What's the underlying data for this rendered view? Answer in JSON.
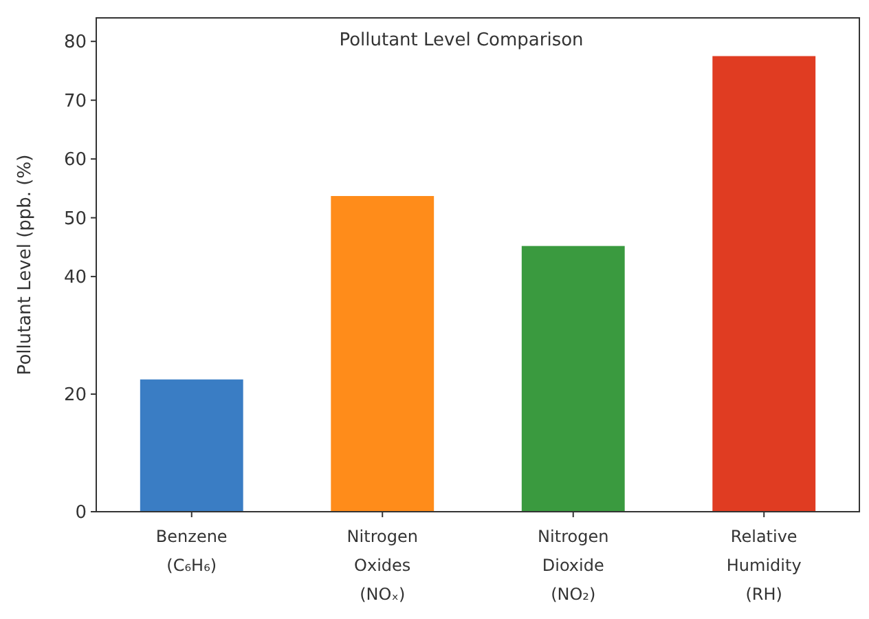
{
  "chart_data": {
    "type": "bar",
    "title": "Pollutant Level Comparison",
    "ylabel": "Pollutant Level (ppb. (%)",
    "categories": [
      "Benzene (C₆H₆)",
      "Nitrogen Oxides (NOₓ)",
      "Nitrogen Dioxide (NO₂)",
      "Relative Humidity (RH)"
    ],
    "values": [
      22.5,
      53.7,
      45.2,
      77.5
    ],
    "colors": [
      "#3a7dc4",
      "#ff8c1a",
      "#3a9a3f",
      "#e03c22"
    ],
    "ylim": [
      0,
      84
    ],
    "yticks": [
      0,
      20,
      40,
      50,
      60,
      70,
      80
    ],
    "grid": false
  }
}
